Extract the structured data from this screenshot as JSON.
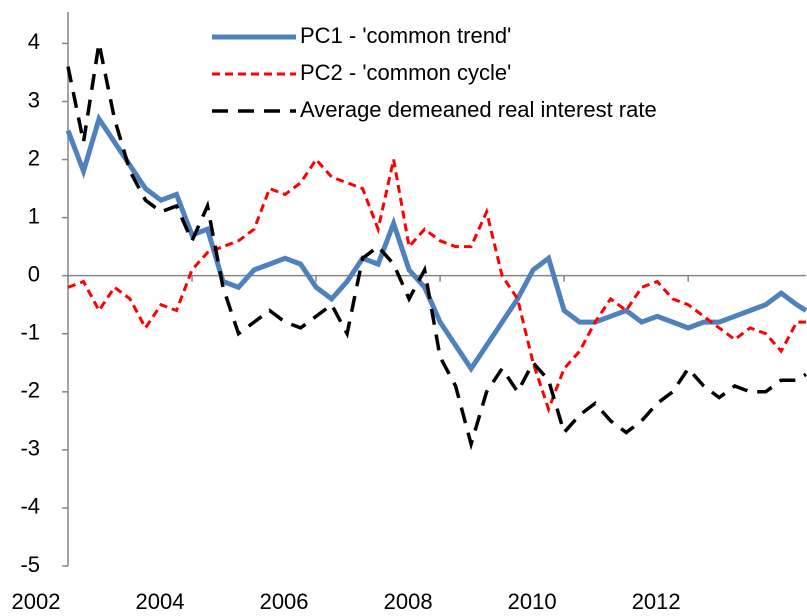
{
  "chart_data": {
    "type": "line",
    "x": [
      2002,
      2002.25,
      2002.5,
      2002.75,
      2003,
      2003.25,
      2003.5,
      2003.75,
      2004,
      2004.25,
      2004.5,
      2004.75,
      2005,
      2005.25,
      2005.5,
      2005.75,
      2006,
      2006.25,
      2006.5,
      2006.75,
      2007,
      2007.25,
      2007.5,
      2007.75,
      2008,
      2008.25,
      2008.5,
      2008.75,
      2009,
      2009.25,
      2009.5,
      2009.75,
      2010,
      2010.25,
      2010.5,
      2010.75,
      2011,
      2011.25,
      2011.5,
      2011.75,
      2012,
      2012.25,
      2012.5,
      2012.75,
      2013,
      2013.25,
      2013.5,
      2013.75,
      2013.9
    ],
    "series": [
      {
        "name": "PC1 - 'common trend'",
        "color": "#4f81bd",
        "style": "solid",
        "values": [
          2.5,
          1.8,
          2.7,
          2.3,
          1.9,
          1.5,
          1.3,
          1.4,
          0.7,
          0.8,
          -0.1,
          -0.2,
          0.1,
          0.2,
          0.3,
          0.2,
          -0.2,
          -0.4,
          -0.1,
          0.3,
          0.2,
          0.9,
          0.1,
          -0.2,
          -0.8,
          -1.2,
          -1.6,
          -1.2,
          -0.8,
          -0.4,
          0.1,
          0.3,
          -0.6,
          -0.8,
          -0.8,
          -0.7,
          -0.6,
          -0.8,
          -0.7,
          -0.8,
          -0.9,
          -0.8,
          -0.8,
          -0.7,
          -0.6,
          -0.5,
          -0.3,
          -0.5,
          -0.6
        ]
      },
      {
        "name": "PC2 - 'common cycle'",
        "color": "#ff0000",
        "style": "dotted",
        "values": [
          -0.2,
          -0.1,
          -0.6,
          -0.2,
          -0.4,
          -0.9,
          -0.5,
          -0.6,
          0.1,
          0.4,
          0.5,
          0.6,
          0.8,
          1.5,
          1.4,
          1.6,
          2.0,
          1.7,
          1.6,
          1.5,
          0.8,
          2.0,
          0.5,
          0.8,
          0.6,
          0.5,
          0.5,
          1.1,
          0.0,
          -0.4,
          -1.5,
          -2.3,
          -1.6,
          -1.3,
          -0.8,
          -0.4,
          -0.6,
          -0.2,
          -0.1,
          -0.4,
          -0.5,
          -0.7,
          -0.9,
          -1.1,
          -0.9,
          -1.0,
          -1.3,
          -0.8,
          -0.8
        ]
      },
      {
        "name": "Average demeaned real interest rate",
        "color": "#000000",
        "style": "dashed",
        "values": [
          3.6,
          2.3,
          4.0,
          2.7,
          1.8,
          1.3,
          1.1,
          1.2,
          0.6,
          1.2,
          -0.2,
          -1.0,
          -0.8,
          -0.6,
          -0.8,
          -0.9,
          -0.7,
          -0.5,
          -1.0,
          0.3,
          0.5,
          0.2,
          -0.4,
          0.1,
          -1.4,
          -1.9,
          -2.9,
          -2.0,
          -1.6,
          -2.0,
          -1.5,
          -1.8,
          -2.7,
          -2.4,
          -2.2,
          -2.5,
          -2.7,
          -2.5,
          -2.2,
          -2.0,
          -1.6,
          -1.9,
          -2.1,
          -1.9,
          -2.0,
          -2.0,
          -1.8,
          -1.8,
          -1.7
        ]
      }
    ],
    "xlim": [
      2002,
      2013.9
    ],
    "xticks": [
      2002,
      2004,
      2006,
      2008,
      2010,
      2012
    ],
    "ylim": [
      -5,
      4.3
    ],
    "yticks": [
      -5,
      -4,
      -3,
      -2,
      -1,
      0,
      1,
      2,
      3,
      4
    ],
    "grid": false,
    "legend": "top-right"
  }
}
